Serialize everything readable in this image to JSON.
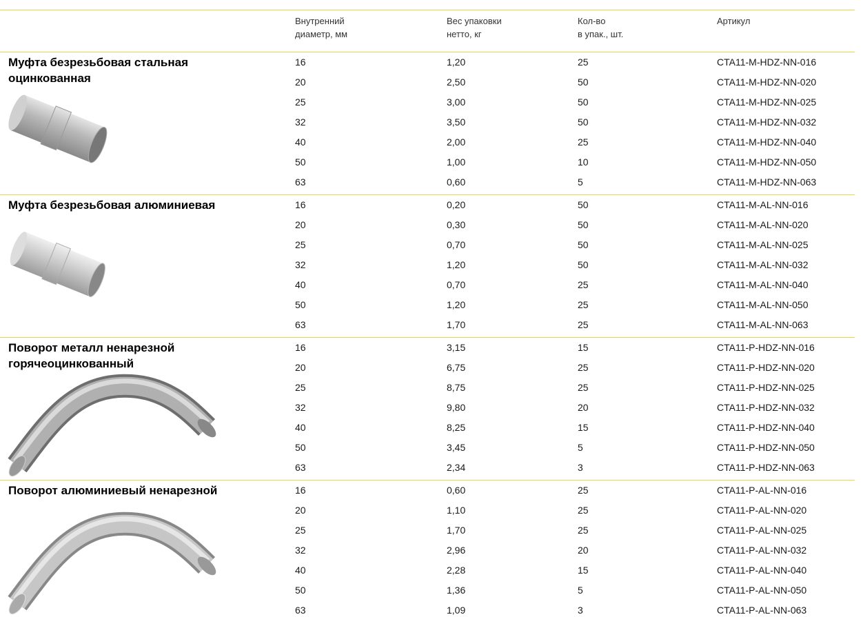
{
  "header": {
    "columns": [
      [
        "Внутренний",
        "диаметр, мм"
      ],
      [
        "Вес упаковки",
        "нетто, кг"
      ],
      [
        "Кол-во",
        "в упак., шт."
      ],
      [
        "Артикул"
      ]
    ]
  },
  "groups": [
    {
      "title": [
        "Муфта безрезьбовая стальная",
        "оцинкованная"
      ],
      "rows": [
        [
          "16",
          "1,20",
          "25",
          "CTA11-M-HDZ-NN-016"
        ],
        [
          "20",
          "2,50",
          "50",
          "CTA11-M-HDZ-NN-020"
        ],
        [
          "25",
          "3,00",
          "50",
          "CTA11-M-HDZ-NN-025"
        ],
        [
          "32",
          "3,50",
          "50",
          "CTA11-M-HDZ-NN-032"
        ],
        [
          "40",
          "2,00",
          "25",
          "CTA11-M-HDZ-NN-040"
        ],
        [
          "50",
          "1,00",
          "10",
          "CTA11-M-HDZ-NN-050"
        ],
        [
          "63",
          "0,60",
          "5",
          "CTA11-M-HDZ-NN-063"
        ]
      ]
    },
    {
      "title": [
        "Муфта безрезьбовая алюминиевая"
      ],
      "rows": [
        [
          "16",
          "0,20",
          "50",
          "CTA11-M-AL-NN-016"
        ],
        [
          "20",
          "0,30",
          "50",
          "CTA11-M-AL-NN-020"
        ],
        [
          "25",
          "0,70",
          "50",
          "CTA11-M-AL-NN-025"
        ],
        [
          "32",
          "1,20",
          "50",
          "CTA11-M-AL-NN-032"
        ],
        [
          "40",
          "0,70",
          "25",
          "CTA11-M-AL-NN-040"
        ],
        [
          "50",
          "1,20",
          "25",
          "CTA11-M-AL-NN-050"
        ],
        [
          "63",
          "1,70",
          "25",
          "CTA11-M-AL-NN-063"
        ]
      ]
    },
    {
      "title": [
        "Поворот металл ненарезной",
        "горячеоцинкованный"
      ],
      "rows": [
        [
          "16",
          "3,15",
          "15",
          "CTA11-P-HDZ-NN-016"
        ],
        [
          "20",
          "6,75",
          "25",
          "CTA11-P-HDZ-NN-020"
        ],
        [
          "25",
          "8,75",
          "25",
          "CTA11-P-HDZ-NN-025"
        ],
        [
          "32",
          "9,80",
          "20",
          "CTA11-P-HDZ-NN-032"
        ],
        [
          "40",
          "8,25",
          "15",
          "CTA11-P-HDZ-NN-040"
        ],
        [
          "50",
          "3,45",
          "5",
          "CTA11-P-HDZ-NN-050"
        ],
        [
          "63",
          "2,34",
          "3",
          "CTA11-P-HDZ-NN-063"
        ]
      ]
    },
    {
      "title": [
        "Поворот алюминиевый ненарезной"
      ],
      "rows": [
        [
          "16",
          "0,60",
          "25",
          "CTA11-P-AL-NN-016"
        ],
        [
          "20",
          "1,10",
          "25",
          "CTA11-P-AL-NN-020"
        ],
        [
          "25",
          "1,70",
          "25",
          "CTA11-P-AL-NN-025"
        ],
        [
          "32",
          "2,96",
          "20",
          "CTA11-P-AL-NN-032"
        ],
        [
          "40",
          "2,28",
          "15",
          "CTA11-P-AL-NN-040"
        ],
        [
          "50",
          "1,36",
          "5",
          "CTA11-P-AL-NN-050"
        ],
        [
          "63",
          "1,09",
          "3",
          "CTA11-P-AL-NN-063"
        ]
      ]
    }
  ]
}
